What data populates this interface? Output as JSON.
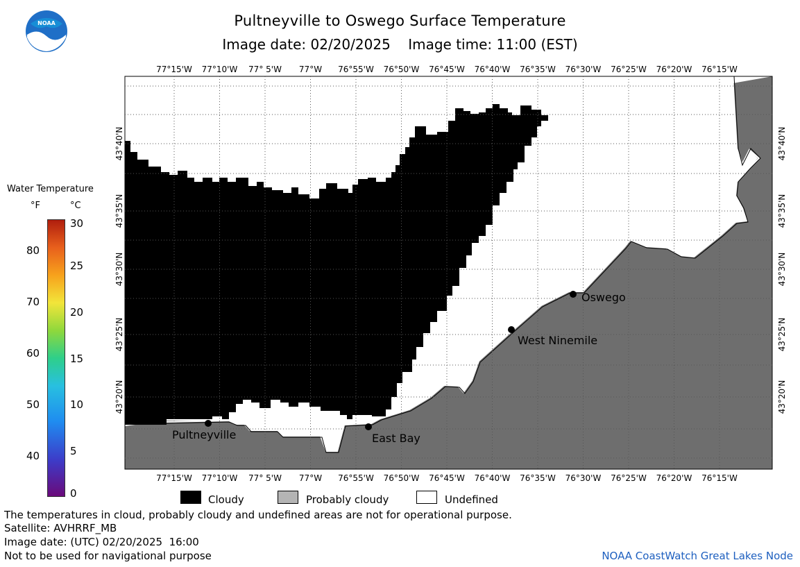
{
  "header": {
    "title": "Pultneyville to Oswego Surface Temperature",
    "date_line": "Image date: 02/20/2025    Image time: 11:00 (EST)",
    "logo_text": "NOAA"
  },
  "map": {
    "lon_labels": [
      "77°15'W",
      "77°10'W",
      "77° 5'W",
      "77°W",
      "76°55'W",
      "76°50'W",
      "76°45'W",
      "76°40'W",
      "76°35'W",
      "76°30'W",
      "76°25'W",
      "76°20'W",
      "76°15'W"
    ],
    "lat_labels": [
      "43°40'N",
      "43°35'N",
      "43°30'N",
      "43°25'N",
      "43°20'N"
    ],
    "places": [
      {
        "name": "Pultneyville"
      },
      {
        "name": "East Bay"
      },
      {
        "name": "West Ninemile"
      },
      {
        "name": "Oswego"
      }
    ],
    "colors": {
      "cloudy": "#000000",
      "probably_cloudy": "#6e6e6e",
      "undefined": "#ffffff"
    }
  },
  "legend": {
    "title": "Water Temperature",
    "unit_f": "°F",
    "unit_c": "°C",
    "f_ticks": [
      "80",
      "70",
      "60",
      "50",
      "40"
    ],
    "c_ticks": [
      "30",
      "25",
      "20",
      "15",
      "10",
      "5",
      "0"
    ]
  },
  "key": {
    "cloudy": "Cloudy",
    "probably_cloudy": "Probably cloudy",
    "undefined": "Undefined"
  },
  "notes": {
    "disclaimer": "The temperatures in cloud, probably cloudy and undefined areas are not for operational purpose.",
    "satellite": "Satellite: AVHRRF_MB",
    "utc_date": "Image date: (UTC) 02/20/2025  16:00",
    "nav": "Not to be used for navigational purpose",
    "credit": "NOAA CoastWatch Great Lakes Node"
  }
}
